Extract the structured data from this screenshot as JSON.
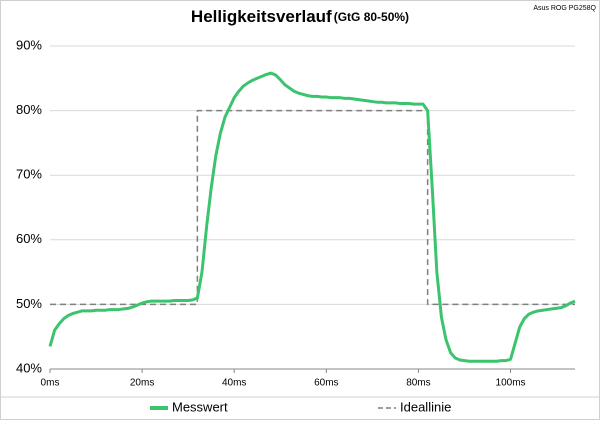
{
  "chart_data": {
    "type": "line",
    "title": "Helligkeitsverlauf",
    "subtitle": "(GtG 80-50%)",
    "note": "Asus ROG PG258Q",
    "xlim": [
      0,
      114
    ],
    "ylim": [
      40,
      90
    ],
    "xticks": [
      {
        "value": 0,
        "label": "0ms"
      },
      {
        "value": 20,
        "label": "20ms"
      },
      {
        "value": 40,
        "label": "40ms"
      },
      {
        "value": 60,
        "label": "60ms"
      },
      {
        "value": 80,
        "label": "80ms"
      },
      {
        "value": 100,
        "label": "100ms"
      }
    ],
    "yticks": [
      {
        "value": 40,
        "label": "40%"
      },
      {
        "value": 50,
        "label": "50%"
      },
      {
        "value": 60,
        "label": "60%"
      },
      {
        "value": 70,
        "label": "70%"
      },
      {
        "value": 80,
        "label": "80%"
      },
      {
        "value": 90,
        "label": "90%"
      }
    ],
    "grid": true,
    "legend": "bottom",
    "series": [
      {
        "name": "Messwert",
        "color": "#3cc36e",
        "style": "solid",
        "x": [
          0,
          1,
          2,
          3,
          4,
          5,
          6,
          7,
          8,
          9,
          10,
          11,
          12,
          13,
          14,
          15,
          16,
          17,
          18,
          19,
          20,
          21,
          22,
          23,
          24,
          25,
          26,
          27,
          28,
          29,
          30,
          31,
          32,
          33,
          34,
          35,
          36,
          37,
          38,
          39,
          40,
          41,
          42,
          43,
          44,
          45,
          46,
          47,
          48,
          49,
          50,
          51,
          52,
          53,
          54,
          55,
          56,
          57,
          58,
          59,
          60,
          61,
          62,
          63,
          64,
          65,
          66,
          67,
          68,
          69,
          70,
          71,
          72,
          73,
          74,
          75,
          76,
          77,
          78,
          79,
          80,
          81,
          82,
          83,
          84,
          85,
          86,
          87,
          88,
          89,
          90,
          91,
          92,
          93,
          94,
          95,
          96,
          97,
          98,
          99,
          100,
          101,
          102,
          103,
          104,
          105,
          106,
          107,
          108,
          109,
          110,
          111,
          112,
          113,
          114
        ],
        "values": [
          43.5,
          46,
          47,
          47.8,
          48.3,
          48.6,
          48.8,
          49,
          49,
          49,
          49.1,
          49.1,
          49.1,
          49.2,
          49.2,
          49.2,
          49.3,
          49.4,
          49.6,
          49.9,
          50.2,
          50.4,
          50.5,
          50.5,
          50.5,
          50.5,
          50.5,
          50.6,
          50.6,
          50.6,
          50.6,
          50.7,
          51,
          55,
          62,
          68,
          73,
          76.5,
          79,
          80.5,
          82,
          83,
          83.8,
          84.3,
          84.7,
          85,
          85.3,
          85.6,
          85.8,
          85.5,
          84.8,
          84,
          83.5,
          83,
          82.7,
          82.5,
          82.3,
          82.2,
          82.2,
          82.1,
          82.1,
          82,
          82,
          82,
          81.9,
          81.9,
          81.8,
          81.7,
          81.6,
          81.5,
          81.4,
          81.3,
          81.3,
          81.2,
          81.2,
          81.2,
          81.1,
          81.1,
          81.1,
          81,
          81,
          81,
          80,
          68,
          55,
          48,
          44.5,
          42.5,
          41.7,
          41.4,
          41.3,
          41.2,
          41.2,
          41.2,
          41.2,
          41.2,
          41.2,
          41.2,
          41.3,
          41.3,
          41.5,
          44,
          46.5,
          47.8,
          48.5,
          48.8,
          49,
          49.1,
          49.2,
          49.3,
          49.4,
          49.5,
          49.8,
          50.2,
          50.5
        ]
      },
      {
        "name": "Ideallinie",
        "color": "#7f7f7f",
        "style": "dashed",
        "x": [
          0,
          32,
          32,
          82,
          82,
          114
        ],
        "values": [
          50,
          50,
          80,
          80,
          50,
          50
        ]
      }
    ]
  }
}
